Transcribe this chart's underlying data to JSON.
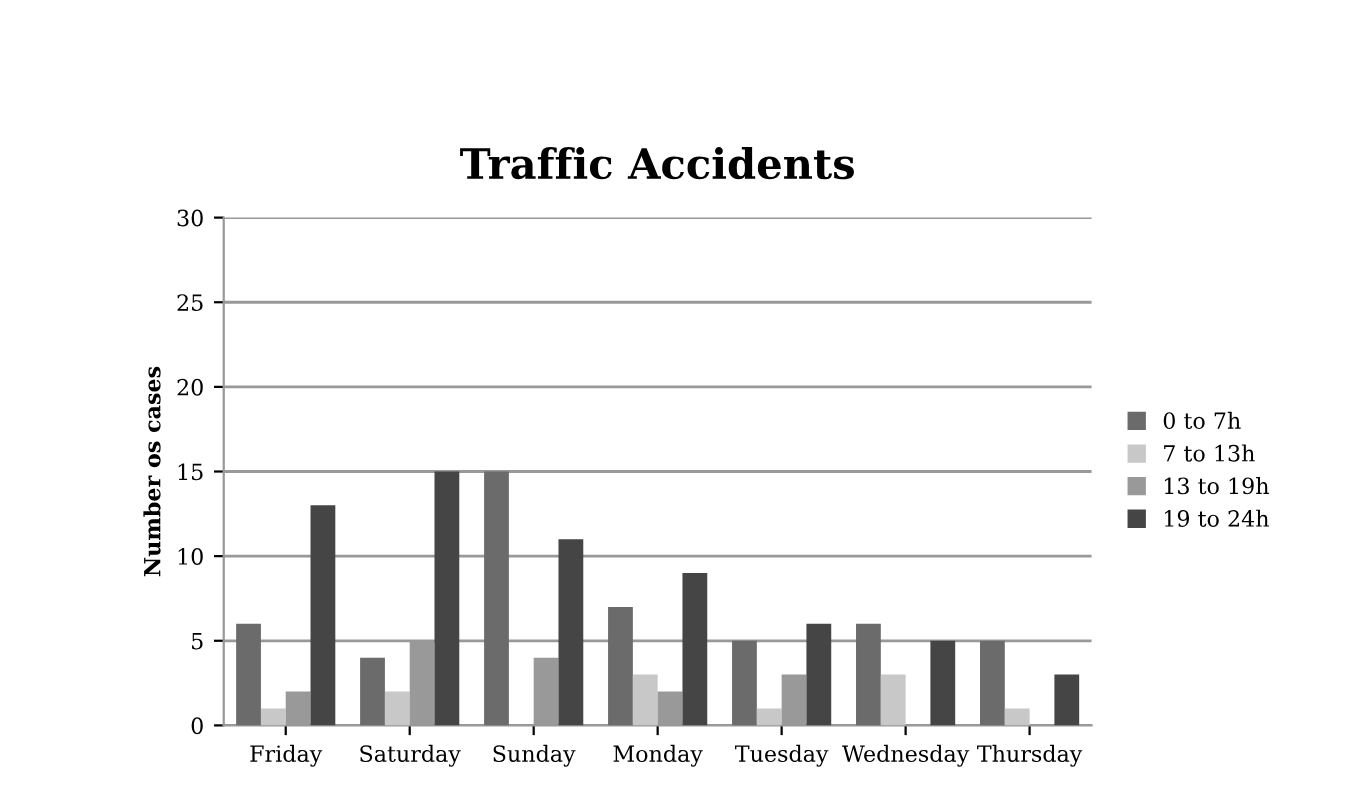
{
  "chart_data": {
    "type": "bar",
    "title": "Traffic Accidents",
    "ylabel": "Number os cases",
    "categories": [
      "Friday",
      "Saturday",
      "Sunday",
      "Monday",
      "Tuesday",
      "Wednesday",
      "Thursday"
    ],
    "series": [
      {
        "name": "0 to 7h",
        "color": "#6b6b6b",
        "values": [
          6,
          4,
          15,
          7,
          5,
          6,
          5
        ]
      },
      {
        "name": "7 to 13h",
        "color": "#c8c8c8",
        "values": [
          1,
          2,
          0,
          3,
          1,
          3,
          1
        ]
      },
      {
        "name": "13 to 19h",
        "color": "#999999",
        "values": [
          2,
          5,
          4,
          2,
          3,
          0,
          0
        ]
      },
      {
        "name": "19 to 24h",
        "color": "#454545",
        "values": [
          13,
          15,
          11,
          9,
          6,
          5,
          3
        ]
      }
    ],
    "ylim": [
      0,
      30
    ],
    "yticks": [
      0,
      5,
      10,
      15,
      20,
      25,
      30
    ],
    "grid": "y",
    "legend": "right"
  }
}
